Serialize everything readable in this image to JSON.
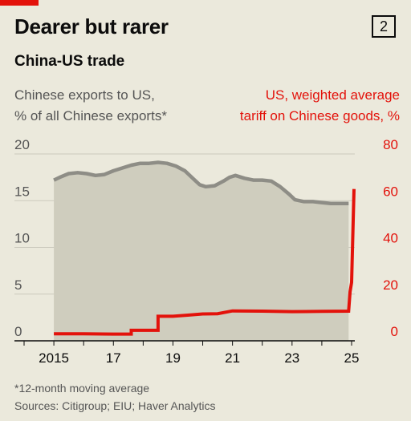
{
  "header": {
    "title": "Dearer but rarer",
    "badge": "2",
    "subtitle": "China-US trade"
  },
  "chart_data": {
    "type": "area",
    "left_axis_label": "Chinese exports to US,\n% of all Chinese exports*",
    "right_axis_label": "US, weighted average\ntariff on Chinese goods, %",
    "left_ylim": [
      0,
      20
    ],
    "right_ylim": [
      0,
      80
    ],
    "left_ticks": [
      0,
      5,
      10,
      15,
      20
    ],
    "right_ticks": [
      0,
      20,
      40,
      60,
      80
    ],
    "x_ticks": [
      {
        "year": 2015,
        "label": "2015"
      },
      {
        "year": 2017,
        "label": "17"
      },
      {
        "year": 2019,
        "label": "19"
      },
      {
        "year": 2021,
        "label": "21"
      },
      {
        "year": 2023,
        "label": "23"
      },
      {
        "year": 2025,
        "label": "25"
      }
    ],
    "grid": true,
    "colors": {
      "exports_area": "#cfcdbe",
      "exports_line": "#8e8d86",
      "tariff_line": "#e3120b",
      "grid": "#cbc9bd"
    },
    "series": [
      {
        "name": "Chinese exports to US",
        "axis": "left",
        "style": "area",
        "points": [
          [
            2015.0,
            17.2
          ],
          [
            2015.2,
            17.5
          ],
          [
            2015.5,
            17.9
          ],
          [
            2015.8,
            18.0
          ],
          [
            2016.1,
            17.9
          ],
          [
            2016.4,
            17.7
          ],
          [
            2016.7,
            17.8
          ],
          [
            2017.0,
            18.2
          ],
          [
            2017.3,
            18.5
          ],
          [
            2017.6,
            18.8
          ],
          [
            2017.9,
            19.0
          ],
          [
            2018.2,
            19.0
          ],
          [
            2018.5,
            19.1
          ],
          [
            2018.8,
            19.0
          ],
          [
            2019.1,
            18.7
          ],
          [
            2019.4,
            18.2
          ],
          [
            2019.7,
            17.3
          ],
          [
            2019.9,
            16.7
          ],
          [
            2020.1,
            16.5
          ],
          [
            2020.4,
            16.6
          ],
          [
            2020.7,
            17.1
          ],
          [
            2020.9,
            17.5
          ],
          [
            2021.1,
            17.7
          ],
          [
            2021.4,
            17.4
          ],
          [
            2021.7,
            17.2
          ],
          [
            2022.0,
            17.2
          ],
          [
            2022.3,
            17.1
          ],
          [
            2022.6,
            16.5
          ],
          [
            2022.9,
            15.7
          ],
          [
            2023.1,
            15.1
          ],
          [
            2023.4,
            14.9
          ],
          [
            2023.7,
            14.9
          ],
          [
            2024.0,
            14.8
          ],
          [
            2024.3,
            14.7
          ],
          [
            2024.6,
            14.7
          ],
          [
            2024.9,
            14.7
          ]
        ]
      },
      {
        "name": "US weighted average tariff on Chinese goods",
        "axis": "right",
        "style": "step",
        "points": [
          [
            2015.0,
            3.0
          ],
          [
            2016.0,
            3.0
          ],
          [
            2017.0,
            2.9
          ],
          [
            2017.6,
            2.9
          ],
          [
            2017.6,
            4.5
          ],
          [
            2018.5,
            4.5
          ],
          [
            2018.5,
            10.5
          ],
          [
            2019.0,
            10.5
          ],
          [
            2019.5,
            11.0
          ],
          [
            2020.0,
            11.5
          ],
          [
            2020.5,
            11.6
          ],
          [
            2021.0,
            12.8
          ],
          [
            2022.0,
            12.7
          ],
          [
            2023.0,
            12.5
          ],
          [
            2024.0,
            12.6
          ],
          [
            2024.9,
            12.7
          ],
          [
            2024.95,
            21.0
          ],
          [
            2025.0,
            25.0
          ],
          [
            2025.08,
            65.0
          ]
        ]
      }
    ]
  },
  "footer": {
    "footnote": "*12-month moving average",
    "sources": "Sources: Citigroup; EIU; Haver Analytics"
  }
}
